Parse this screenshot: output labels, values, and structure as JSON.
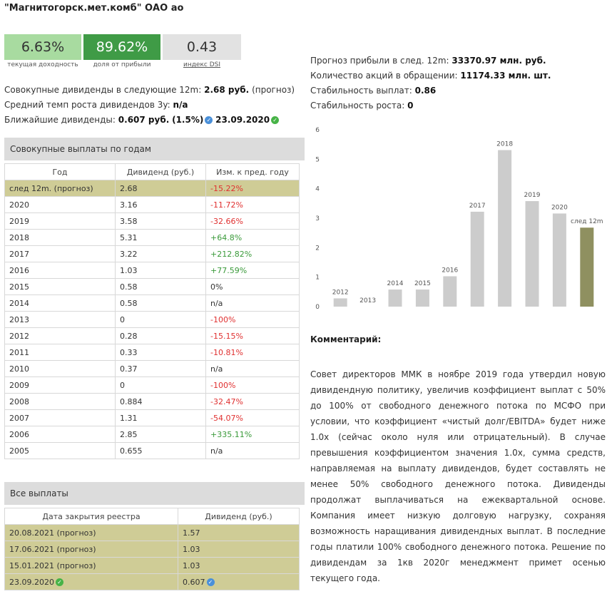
{
  "header": {
    "title": "\"Магнитогорск.мет.комб\" ОАО ао"
  },
  "metrics": [
    {
      "value": "6.63%",
      "caption": "текущая доходность",
      "bg": "#a8dba0",
      "fg": "#333333"
    },
    {
      "value": "89.62%",
      "caption": "доля от прибыли",
      "bg": "#3f9b46",
      "fg": "#ffffff"
    },
    {
      "value": "0.43",
      "caption": "индекс DSI",
      "bg": "#e2e2e2",
      "fg": "#333333"
    }
  ],
  "summary": {
    "total_label": "Совокупные дивиденды в следующие 12m:",
    "total_value": "2.68 руб.",
    "total_note": "(прогноз)",
    "growth_label": "Средний темп роста дивидендов 3y:",
    "growth_value": "n/a",
    "next_label": "Ближайшие дивиденды:",
    "next_value": "0.607 руб.",
    "next_pct": "(1.5%)",
    "next_date": "23.09.2020"
  },
  "stats": {
    "profit_label": "Прогноз прибыли в след. 12m:",
    "profit_value": "33370.97 млн. руб.",
    "shares_label": "Количество акций в обращении:",
    "shares_value": "11174.33 млн. шт.",
    "stab_pay_label": "Стабильность выплат:",
    "stab_pay_value": "0.86",
    "stab_growth_label": "Стабильность роста:",
    "stab_growth_value": "0"
  },
  "annual": {
    "heading": "Совокупные выплаты по годам",
    "columns": [
      "Год",
      "Дивиденд (руб.)",
      "Изм. к пред. году"
    ],
    "rows": [
      {
        "year": "след 12m. (прогноз)",
        "div": "2.68",
        "chg": "-15.22%",
        "tone": "neg",
        "hl": true
      },
      {
        "year": "2020",
        "div": "3.16",
        "chg": "-11.72%",
        "tone": "neg"
      },
      {
        "year": "2019",
        "div": "3.58",
        "chg": "-32.66%",
        "tone": "neg"
      },
      {
        "year": "2018",
        "div": "5.31",
        "chg": "+64.8%",
        "tone": "pos"
      },
      {
        "year": "2017",
        "div": "3.22",
        "chg": "+212.82%",
        "tone": "pos"
      },
      {
        "year": "2016",
        "div": "1.03",
        "chg": "+77.59%",
        "tone": "pos"
      },
      {
        "year": "2015",
        "div": "0.58",
        "chg": "0%",
        "tone": "none"
      },
      {
        "year": "2014",
        "div": "0.58",
        "chg": "n/a",
        "tone": "none"
      },
      {
        "year": "2013",
        "div": "0",
        "chg": "-100%",
        "tone": "neg"
      },
      {
        "year": "2012",
        "div": "0.28",
        "chg": "-15.15%",
        "tone": "neg"
      },
      {
        "year": "2011",
        "div": "0.33",
        "chg": "-10.81%",
        "tone": "neg"
      },
      {
        "year": "2010",
        "div": "0.37",
        "chg": "n/a",
        "tone": "none"
      },
      {
        "year": "2009",
        "div": "0",
        "chg": "-100%",
        "tone": "neg"
      },
      {
        "year": "2008",
        "div": "0.884",
        "chg": "-32.47%",
        "tone": "neg"
      },
      {
        "year": "2007",
        "div": "1.31",
        "chg": "-54.07%",
        "tone": "neg"
      },
      {
        "year": "2006",
        "div": "2.85",
        "chg": "+335.11%",
        "tone": "pos"
      },
      {
        "year": "2005",
        "div": "0.655",
        "chg": "n/a",
        "tone": "none"
      }
    ]
  },
  "payments": {
    "heading": "Все выплаты",
    "columns": [
      "Дата закрытия реестра",
      "Дивиденд (руб.)"
    ],
    "rows": [
      {
        "date": "20.08.2021 (прогноз)",
        "div": "1.57"
      },
      {
        "date": "17.06.2021 (прогноз)",
        "div": "1.03"
      },
      {
        "date": "15.01.2021 (прогноз)",
        "div": "1.03"
      },
      {
        "date": "23.09.2020",
        "div": "0.607",
        "date_check": true,
        "div_check": true
      }
    ]
  },
  "chart_data": {
    "type": "bar",
    "categories": [
      "2012",
      "2013",
      "2014",
      "2015",
      "2016",
      "2017",
      "2018",
      "2019",
      "2020",
      "след 12m"
    ],
    "values": [
      0.28,
      0,
      0.58,
      0.58,
      1.03,
      3.22,
      5.31,
      3.58,
      3.16,
      2.68
    ],
    "ylim": [
      0,
      6
    ],
    "yticks": [
      0,
      1,
      2,
      3,
      4,
      5,
      6
    ],
    "colors": {
      "bar": "#cccccc",
      "forecast": "#8f9060"
    },
    "grid": false
  },
  "comment": {
    "heading": "Комментарий:",
    "text": "Совет директоров ММК в ноябре 2019 года утвердил новую дивидендную политику, увеличив коэффициент выплат с 50% до 100% от свободного денежного потока по МСФО при условии, что коэффициент «чистый долг/EBITDA» будет ниже 1.0x (сейчас около нуля или отрицательный). В случае превышения коэффициентом значения 1.0x, сумма средств, направляемая на выплату дивидендов, будет составлять не менее 50% свободного денежного потока. Дивиденды продолжат выплачиваться на ежеквартальной основе. Компания имеет низкую долговую нагрузку, сохраняя возможность наращивания дивидендных выплат. В последние годы платили 100% свободного денежного потока. Решение по дивидендам за 1кв 2020г менеджмент примет осенью текущего года."
  }
}
